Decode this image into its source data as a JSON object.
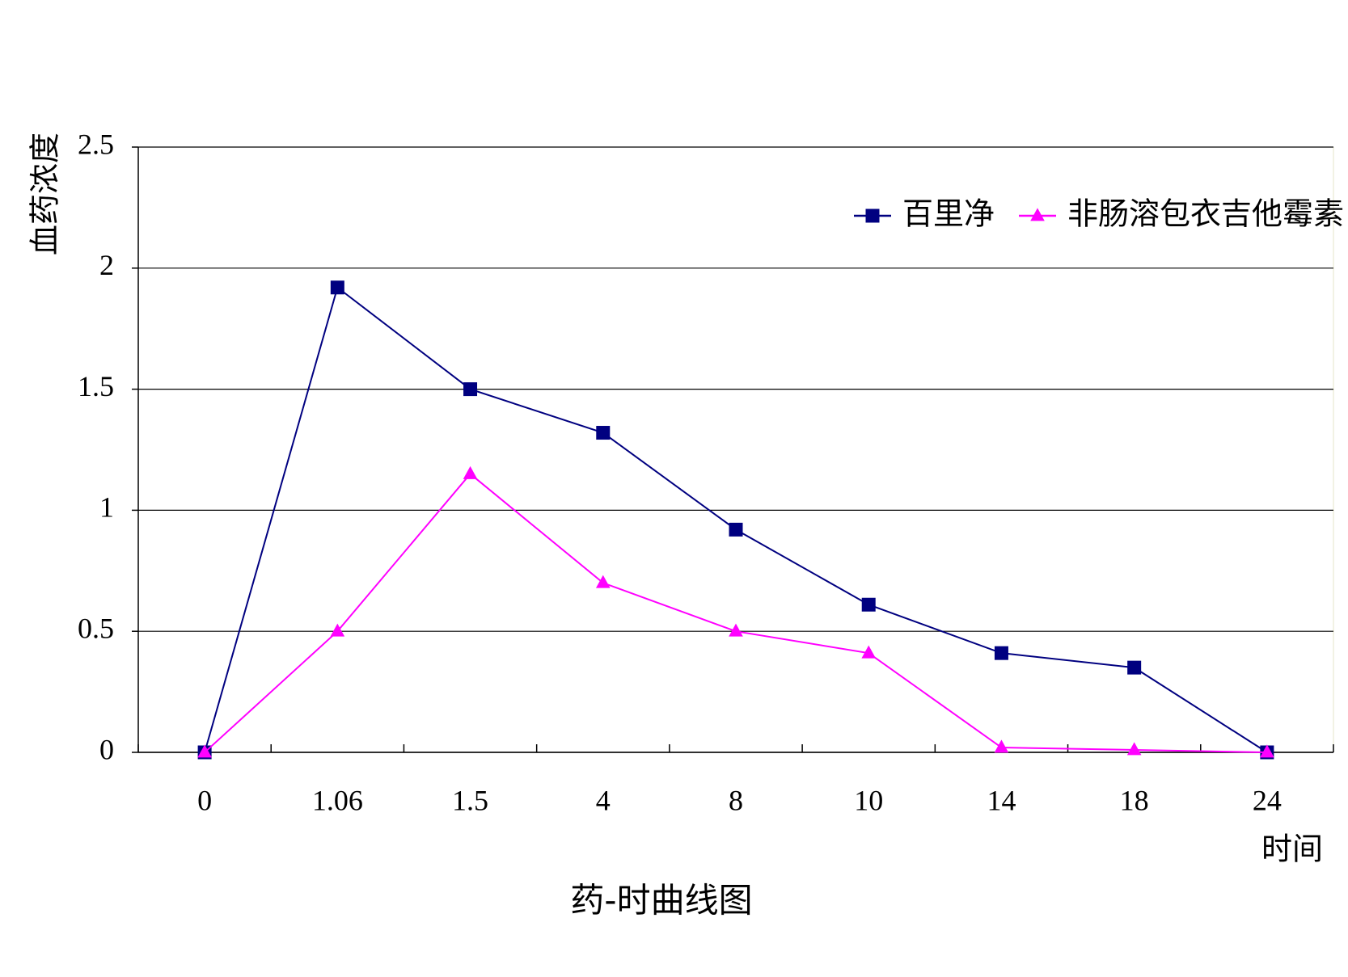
{
  "chart_data": {
    "type": "line",
    "title": "药-时曲线图",
    "x_label": "时间",
    "y_label": "血药浓度",
    "categories": [
      "0",
      "1.06",
      "1.5",
      "4",
      "8",
      "10",
      "14",
      "18",
      "24"
    ],
    "series": [
      {
        "name": "百里净",
        "color": "#000080",
        "marker": "square",
        "values": [
          0,
          1.92,
          1.5,
          1.32,
          0.92,
          0.61,
          0.41,
          0.35,
          0
        ]
      },
      {
        "name": "非肠溶包衣吉他霉素",
        "color": "#ff00ff",
        "marker": "triangle",
        "values": [
          0,
          0.5,
          1.15,
          0.7,
          0.5,
          0.41,
          0.02,
          0.01,
          0
        ]
      }
    ],
    "ylim": [
      0,
      2.5
    ],
    "yticks": [
      0,
      0.5,
      1,
      1.5,
      2,
      2.5
    ],
    "grid": true,
    "legend": "top-right"
  }
}
